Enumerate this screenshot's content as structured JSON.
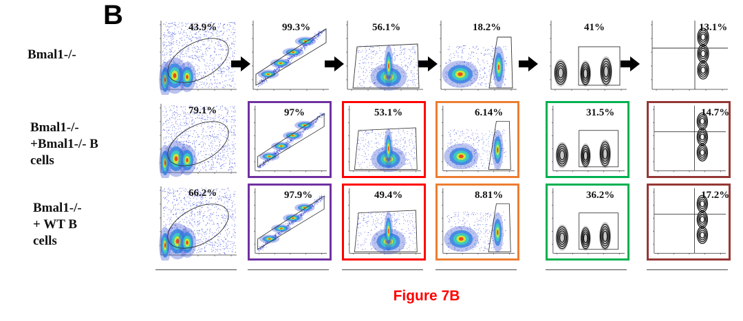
{
  "panel_letter": "B",
  "rows": [
    {
      "label": [
        "Bmal1-/-"
      ],
      "percentages": [
        "43.9%",
        "99.3%",
        "56.1%",
        "18.2%",
        "41%",
        "13.1%"
      ]
    },
    {
      "label": [
        "Bmal1-/-",
        "+Bmal1-/- B",
        "cells"
      ],
      "percentages": [
        "79.1%",
        "97%",
        "53.1%",
        "6.14%",
        "31.5%",
        "14.7%"
      ]
    },
    {
      "label": [
        "Bmal1-/-",
        "+ WT B",
        "cells"
      ],
      "percentages": [
        "66.2%",
        "97.9%",
        "49.4%",
        "8.81%",
        "36.2%",
        "17.2%"
      ]
    }
  ],
  "column_frame_colors": [
    "#ffffff",
    "#7030a0",
    "#ff0000",
    "#ed7d31",
    "#00b050",
    "#953735"
  ],
  "caption": "Figure 7B",
  "caption_color": "#ff0000"
}
